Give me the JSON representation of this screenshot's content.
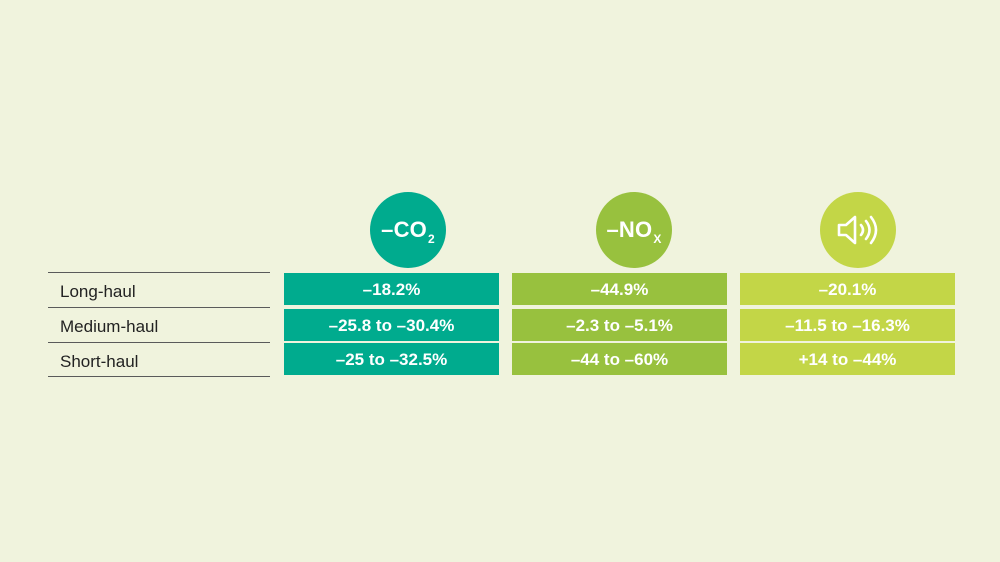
{
  "background_color": "#f0f3dd",
  "headers": [
    {
      "name": "co2",
      "prefix": "–",
      "main": "CO",
      "sub": "2",
      "color": "#00ab8e"
    },
    {
      "name": "nox",
      "prefix": "–",
      "main": "NO",
      "sub": "X",
      "color": "#98c13e"
    },
    {
      "name": "noise",
      "icon": "speaker-sound-icon",
      "color": "#c3d647"
    }
  ],
  "rows": [
    {
      "label": "Long-haul"
    },
    {
      "label": "Medium-haul"
    },
    {
      "label": "Short-haul"
    }
  ],
  "columns": [
    {
      "values": [
        "–18.2%",
        "–25.8 to –30.4%",
        "–25 to –32.5%"
      ],
      "color": "#00ab8e"
    },
    {
      "values": [
        "–44.9%",
        "–2.3 to –5.1%",
        "–44 to –60%"
      ],
      "color": "#98c13e"
    },
    {
      "values": [
        "–20.1%",
        "–11.5 to –16.3%",
        "+14 to –44%"
      ],
      "color": "#c3d647"
    }
  ]
}
